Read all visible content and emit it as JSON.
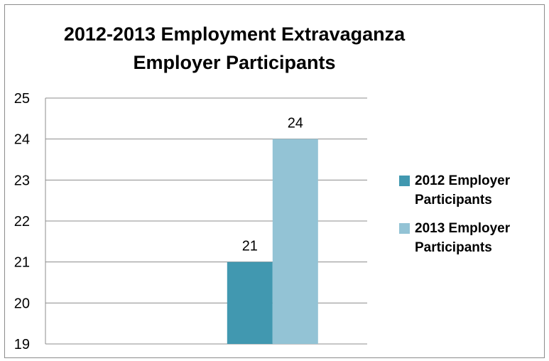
{
  "chart_data": {
    "type": "bar",
    "title_lines": [
      "2012-2013 Employment Extravaganza",
      "Employer Participants"
    ],
    "xlabel": "",
    "ylabel": "",
    "ylim": [
      19,
      25
    ],
    "yticks": [
      "25",
      "24",
      "23",
      "22",
      "21",
      "20",
      "19"
    ],
    "grid": true,
    "legend_position": "right",
    "categories": [
      ""
    ],
    "series": [
      {
        "name": "2012 Employer Participants",
        "values": [
          21
        ],
        "color": "#4198b0",
        "legend_lines": [
          "2012 Employer",
          "Participants"
        ]
      },
      {
        "name": "2013 Employer Participants",
        "values": [
          24
        ],
        "color": "#93c3d5",
        "legend_lines": [
          "2013 Employer",
          "Participants"
        ]
      }
    ],
    "data_labels": [
      "21",
      "24"
    ]
  }
}
